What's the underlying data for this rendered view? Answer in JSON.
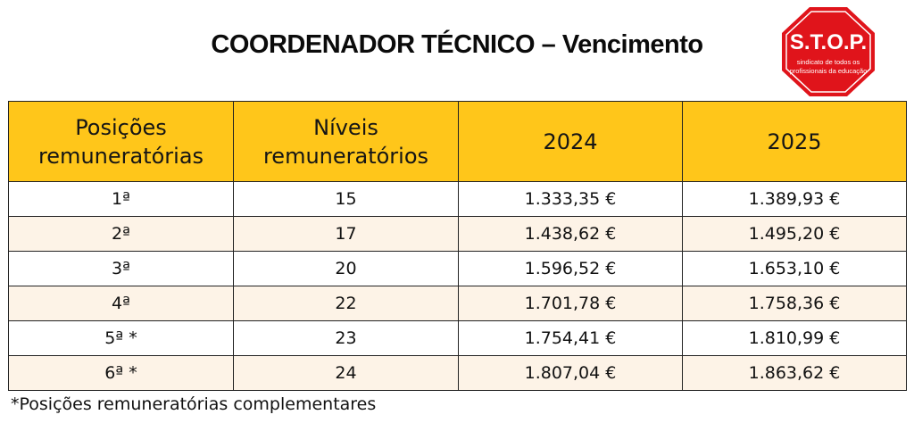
{
  "title": "COORDENADOR TÉCNICO – Vencimento",
  "logo": {
    "text": "S.T.O.P.",
    "tagline_line1": "sindicato de todos os",
    "tagline_line2": "profissionais da educação",
    "color": "#e0141b"
  },
  "table": {
    "headers": {
      "positions": "Posições remuneratórias",
      "levels": "Níveis remuneratórios",
      "year1": "2024",
      "year2": "2025"
    },
    "rows": [
      {
        "position": "1ª",
        "level": "15",
        "y2024": "1.333,35 €",
        "y2025": "1.389,93 €"
      },
      {
        "position": "2ª",
        "level": "17",
        "y2024": "1.438,62 €",
        "y2025": "1.495,20 €"
      },
      {
        "position": "3ª",
        "level": "20",
        "y2024": "1.596,52 €",
        "y2025": "1.653,10 €"
      },
      {
        "position": "4ª",
        "level": "22",
        "y2024": "1.701,78 €",
        "y2025": "1.758,36 €"
      },
      {
        "position": "5ª *",
        "level": "23",
        "y2024": "1.754,41 €",
        "y2025": "1.810,99 €"
      },
      {
        "position": "6ª *",
        "level": "24",
        "y2024": "1.807,04 €",
        "y2025": "1.863,62 €"
      }
    ],
    "header_color": "#ffc61a",
    "stripe_color": "#fdf3e7"
  },
  "footnote": "*Posições remuneratórias complementares"
}
